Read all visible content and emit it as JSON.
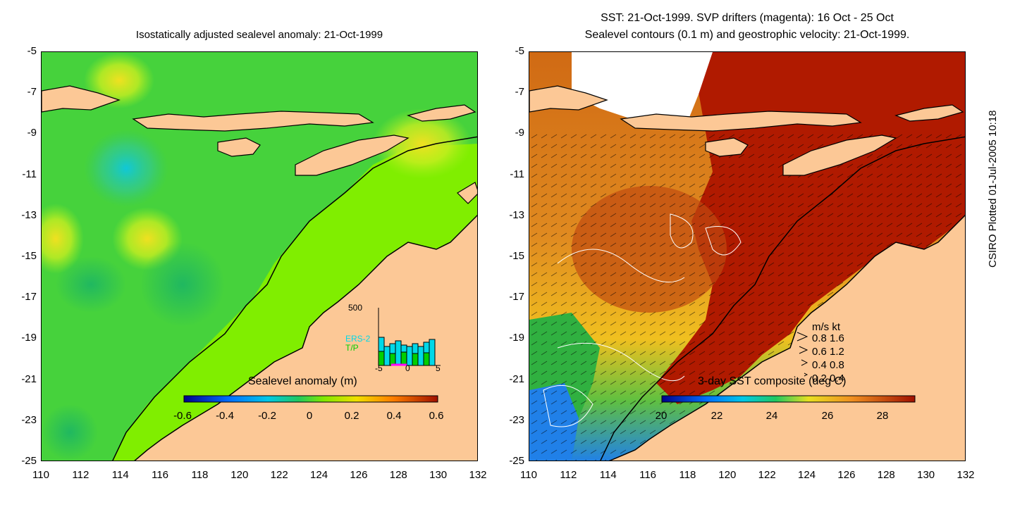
{
  "left_panel": {
    "title": "Isostatically adjusted sealevel anomaly: 21-Oct-1999",
    "colorbar": {
      "title": "Sealevel anomaly (m)",
      "ticks": [
        "-0.6",
        "-0.4",
        "-0.2",
        "0",
        "0.2",
        "0.4",
        "0.6"
      ]
    },
    "inset": {
      "ymax_label": "500",
      "series": [
        "ERS-2",
        "T/P"
      ],
      "series_colors": [
        "#00d8e8",
        "#00d000"
      ],
      "x_ticks": [
        "-5",
        "0",
        "5"
      ]
    }
  },
  "right_panel": {
    "title_line1": "SST: 21-Oct-1999. SVP drifters (magenta): 16 Oct - 25 Oct",
    "title_line2": "Sealevel contours (0.1 m) and geostrophic velocity: 21-Oct-1999.",
    "colorbar": {
      "title": "3-day SST composite (deg C)",
      "ticks": [
        "20",
        "22",
        "24",
        "26",
        "28"
      ]
    },
    "velocity_legend": {
      "header": "m/s  kt",
      "rows": [
        "0.8  1.6",
        "0.6  1.2",
        "0.4  0.8",
        "0.2  0.4"
      ]
    }
  },
  "axes": {
    "y_ticks": [
      "-5",
      "-7",
      "-9",
      "-11",
      "-13",
      "-15",
      "-17",
      "-19",
      "-21",
      "-23",
      "-25"
    ],
    "x_ticks": [
      "110",
      "112",
      "114",
      "116",
      "118",
      "120",
      "122",
      "124",
      "126",
      "128",
      "130",
      "132"
    ]
  },
  "credit": "CSIRO Plotted 01-Jul-2005 10:18",
  "colors": {
    "land": "#fcc896",
    "sla_green": "#6ee23c",
    "sst_red": "#b01a00",
    "sst_orange": "#dd7a20",
    "sst_yellow": "#f2c61a"
  }
}
